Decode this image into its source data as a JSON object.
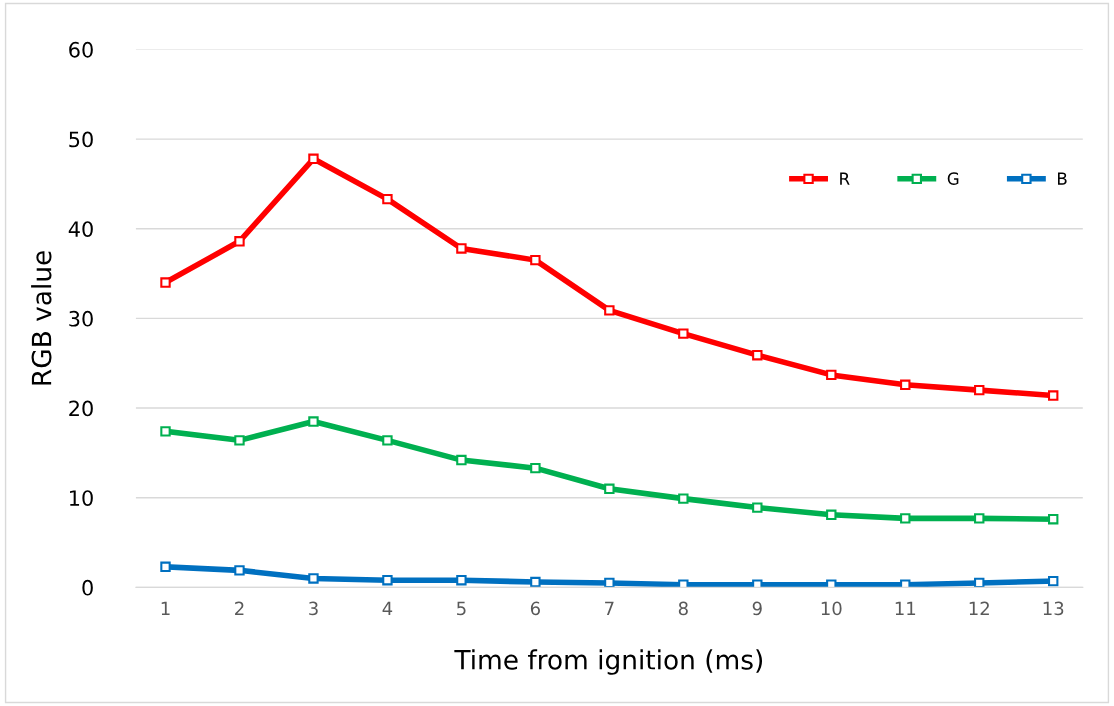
{
  "chart_data": {
    "type": "line",
    "xlabel": "Time from ignition (ms)",
    "ylabel": "RGB value",
    "categories": [
      "1",
      "2",
      "3",
      "4",
      "5",
      "6",
      "7",
      "8",
      "9",
      "10",
      "11",
      "12",
      "13"
    ],
    "series": [
      {
        "name": "R",
        "color": "#ff0000",
        "values": [
          34.0,
          38.6,
          47.8,
          43.3,
          37.8,
          36.5,
          30.9,
          28.3,
          25.9,
          23.7,
          22.6,
          22.0,
          21.4
        ]
      },
      {
        "name": "G",
        "color": "#00b050",
        "values": [
          17.4,
          16.4,
          18.5,
          16.4,
          14.2,
          13.3,
          11.0,
          9.9,
          8.9,
          8.1,
          7.7,
          7.7,
          7.6
        ]
      },
      {
        "name": "B",
        "color": "#0070c0",
        "values": [
          2.3,
          1.9,
          1.0,
          0.8,
          0.8,
          0.6,
          0.5,
          0.3,
          0.3,
          0.3,
          0.3,
          0.5,
          0.7
        ]
      }
    ],
    "ylim": [
      0,
      60
    ],
    "yticks": [
      0,
      10,
      20,
      30,
      40,
      50,
      60
    ],
    "grid": "y",
    "legend": "top right",
    "marker": "square",
    "line_style": "solid"
  }
}
